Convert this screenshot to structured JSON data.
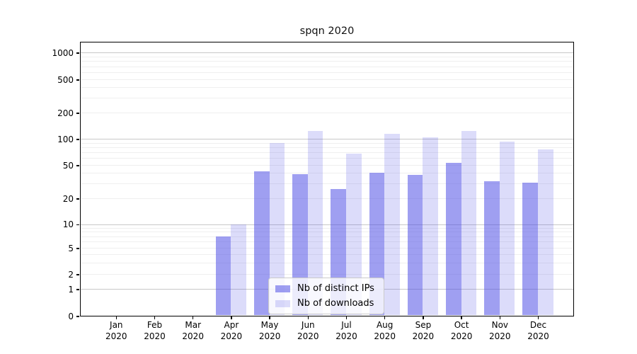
{
  "figure": {
    "background": "#ffffff",
    "spine_color": "#000000"
  },
  "chart_data": {
    "type": "bar",
    "title": "spqn 2020",
    "xlabel": "",
    "ylabel": "",
    "yscale": "symlog",
    "ylim": [
      0,
      1300
    ],
    "grid": "both",
    "grid_major_color": "#c8c8c8",
    "grid_minor_color": "#efefef",
    "legend_position": "lower-center",
    "yticks": [
      0,
      1,
      2,
      5,
      10,
      20,
      50,
      100,
      200,
      500,
      1000
    ],
    "categories": [
      "Jan 2020",
      "Feb 2020",
      "Mar 2020",
      "Apr 2020",
      "May 2020",
      "Jun 2020",
      "Jul 2020",
      "Aug 2020",
      "Sep 2020",
      "Oct 2020",
      "Nov 2020",
      "Dec 2020"
    ],
    "x_ticks": [
      {
        "month": "Jan",
        "year": "2020"
      },
      {
        "month": "Feb",
        "year": "2020"
      },
      {
        "month": "Mar",
        "year": "2020"
      },
      {
        "month": "Apr",
        "year": "2020"
      },
      {
        "month": "May",
        "year": "2020"
      },
      {
        "month": "Jun",
        "year": "2020"
      },
      {
        "month": "Jul",
        "year": "2020"
      },
      {
        "month": "Aug",
        "year": "2020"
      },
      {
        "month": "Sep",
        "year": "2020"
      },
      {
        "month": "Oct",
        "year": "2020"
      },
      {
        "month": "Nov",
        "year": "2020"
      },
      {
        "month": "Dec",
        "year": "2020"
      }
    ],
    "series": [
      {
        "key": "ips",
        "name": "Nb of distinct IPs",
        "color": "rgba(80,80,230,0.55)",
        "values": [
          0,
          0,
          0,
          7,
          42,
          39,
          26,
          40,
          38,
          53,
          32,
          31
        ]
      },
      {
        "key": "downloads",
        "name": "Nb of downloads",
        "color": "rgba(80,80,230,0.2)",
        "values": [
          0,
          0,
          0,
          10,
          89,
          122,
          67,
          115,
          103,
          124,
          93,
          75
        ]
      }
    ]
  }
}
